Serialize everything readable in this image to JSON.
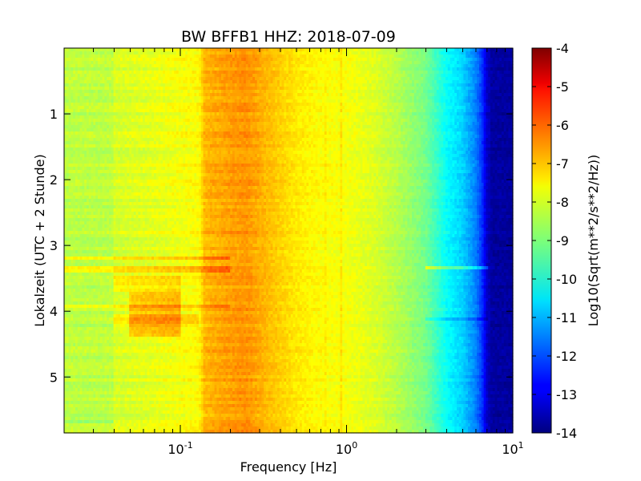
{
  "chart_data": {
    "type": "heatmap",
    "title": "BW BFFB1 HHZ: 2018-07-09",
    "xlabel": "Frequency [Hz]",
    "ylabel": "Lokalzeit (UTC + 2 Stunde)",
    "colorbar_label": "Log10(Sqrt(m**2/s**2/Hz))",
    "x_scale": "log",
    "xlim": [
      0.02,
      10
    ],
    "ylim": [
      5.85,
      0.0
    ],
    "y_inverted": true,
    "clim": [
      -14,
      -4
    ],
    "colormap": "jet",
    "x_ticks": [
      {
        "value": 0.1,
        "base": "10",
        "exp": "-1"
      },
      {
        "value": 1,
        "base": "10",
        "exp": "0"
      },
      {
        "value": 10,
        "base": "10",
        "exp": "1"
      }
    ],
    "y_ticks": [
      {
        "value": 1,
        "label": "1"
      },
      {
        "value": 2,
        "label": "2"
      },
      {
        "value": 3,
        "label": "3"
      },
      {
        "value": 4,
        "label": "4"
      },
      {
        "value": 5,
        "label": "5"
      }
    ],
    "colorbar_ticks": [
      "-4",
      "-5",
      "-6",
      "-7",
      "-8",
      "-9",
      "-10",
      "-11",
      "-12",
      "-13",
      "-14"
    ],
    "psd_profile": {
      "frequency_hz": [
        0.02,
        0.039,
        0.04,
        0.06,
        0.1,
        0.13,
        0.14,
        0.2,
        0.25,
        0.3,
        0.4,
        0.5,
        0.7,
        1.0,
        1.5,
        2.0,
        3.0,
        3.5,
        4.0,
        5.0,
        6.0,
        6.5,
        7.0,
        7.5,
        10
      ],
      "log10_psd": [
        -8.4,
        -8.4,
        -8.15,
        -8.05,
        -7.85,
        -7.75,
        -7.05,
        -6.8,
        -6.7,
        -6.95,
        -7.3,
        -7.55,
        -7.75,
        -7.85,
        -8.1,
        -8.45,
        -9.1,
        -9.7,
        -10.2,
        -10.7,
        -11.5,
        -12.2,
        -13.3,
        -13.7,
        -13.7
      ]
    },
    "anomaly_regions": [
      {
        "f_min": 0.02,
        "f_max": 0.2,
        "t_min": 3.15,
        "t_max": 3.22,
        "delta": 0.75
      },
      {
        "f_min": 0.02,
        "f_max": 0.2,
        "t_min": 3.33,
        "t_max": 3.42,
        "delta": 0.65
      },
      {
        "f_min": 0.02,
        "f_max": 0.2,
        "t_min": 3.9,
        "t_max": 3.97,
        "delta": 0.55
      },
      {
        "f_min": 0.04,
        "f_max": 0.1,
        "t_min": 3.45,
        "t_max": 3.7,
        "delta": 0.5
      },
      {
        "f_min": 0.05,
        "f_max": 0.1,
        "t_min": 3.7,
        "t_max": 4.4,
        "delta": 0.85
      },
      {
        "f_min": 0.04,
        "f_max": 0.13,
        "t_min": 4.05,
        "t_max": 4.25,
        "delta": 0.45
      },
      {
        "f_min": 0.02,
        "f_max": 0.04,
        "t_min": 5.65,
        "t_max": 5.72,
        "delta": -0.45
      },
      {
        "f_min": 3.0,
        "f_max": 7.0,
        "t_min": 3.3,
        "t_max": 3.35,
        "delta": 1.0
      },
      {
        "f_min": 3.0,
        "f_max": 7.0,
        "t_min": 4.1,
        "t_max": 4.15,
        "delta": -0.6
      }
    ],
    "line_features_hz": [
      {
        "f": 0.92,
        "delta": 0.3
      },
      {
        "f": 1.17,
        "delta": 0.55
      },
      {
        "f": 0.75,
        "delta": 0.15
      }
    ]
  }
}
